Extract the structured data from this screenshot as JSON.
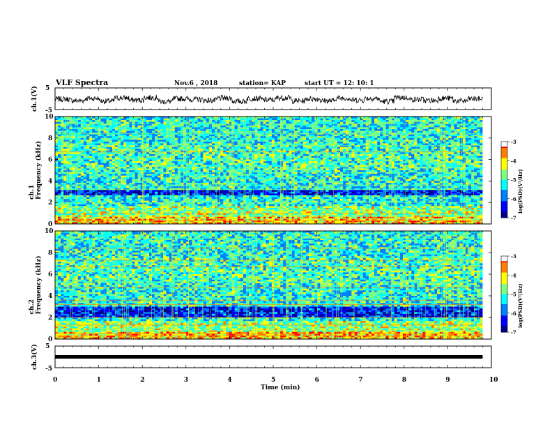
{
  "header": {
    "title": "VLF Spectra",
    "date": "Nov.6 , 2018",
    "station": "station= KAP",
    "start": "start UT = 12: 10: 1"
  },
  "colors": {
    "colormap": [
      "#00008f",
      "#0000ff",
      "#0080ff",
      "#00ffff",
      "#80ff80",
      "#ffff00",
      "#ff8000",
      "#ff0000",
      "#ffffff"
    ],
    "waveform": "#000000"
  },
  "chart_data": [
    {
      "type": "line",
      "title": "",
      "xlabel": "",
      "ylabel": "ch.1(V)",
      "xlim": [
        0,
        10
      ],
      "ylim": [
        -5,
        5
      ],
      "yticks": [
        "5",
        "-5"
      ],
      "description_values": {
        "x_range": [
          0,
          9.8
        ],
        "y_approx_range": [
          -3,
          2
        ]
      },
      "series": [
        {
          "values": [
            0.4,
            -0.8,
            0.9,
            -1.2,
            1.3,
            -0.4,
            1.6,
            -1.5,
            0.7,
            0.2,
            -0.6,
            1.1,
            -1.3,
            0.8,
            -0.2,
            1.4,
            -1.0,
            0.6,
            -0.9,
            1.2,
            -0.3,
            0.9,
            -1.4,
            1.5,
            0.1,
            -0.7,
            1.0,
            -1.1,
            0.5,
            1.3
          ]
        }
      ]
    },
    {
      "type": "heatmap",
      "ylabel": "ch.1\nFrequency (kHz)",
      "xlim": [
        0,
        10
      ],
      "ylim": [
        0,
        10
      ],
      "yticks": [
        "10",
        "8",
        "6",
        "4",
        "2",
        "0"
      ],
      "colorbar": {
        "label": "log(PSD)(V²/Hz)",
        "ticks": [
          "-3",
          "-4",
          "-5",
          "-6",
          "-7"
        ],
        "range": [
          -7,
          -3
        ]
      }
    },
    {
      "type": "heatmap",
      "ylabel": "ch.2\nFrequency (kHz)",
      "xlim": [
        0,
        10
      ],
      "ylim": [
        0,
        10
      ],
      "yticks": [
        "10",
        "8",
        "6",
        "4",
        "2",
        "0"
      ],
      "colorbar": {
        "label": "log(PSD)(V²/Hz)",
        "ticks": [
          "-3",
          "-4",
          "-5",
          "-6",
          "-7"
        ],
        "range": [
          -7,
          -3
        ]
      }
    },
    {
      "type": "line",
      "ylabel": "ch.3(V)",
      "xlabel": "Time (min)",
      "xlim": [
        0,
        10
      ],
      "ylim": [
        -5,
        5
      ],
      "yticks": [
        "5",
        "-5"
      ],
      "xticks": [
        "0",
        "1",
        "2",
        "3",
        "4",
        "5",
        "6",
        "7",
        "8",
        "9",
        "10"
      ],
      "series": [
        {
          "x": [
            0,
            9.8
          ],
          "values": [
            0,
            0
          ]
        }
      ]
    }
  ]
}
